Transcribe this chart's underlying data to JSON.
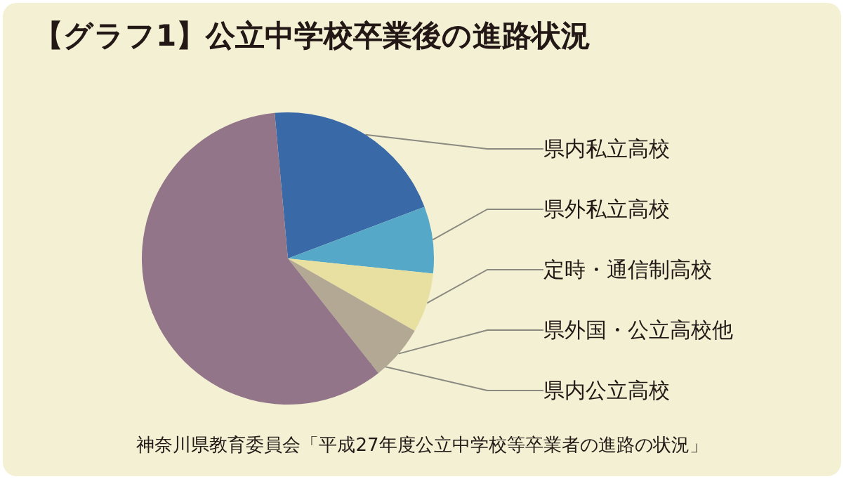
{
  "chart_data": {
    "type": "pie",
    "title": "【グラフ1】公立中学校卒業後の進路状況",
    "categories": [
      "県内私立高校",
      "県外私立高校",
      "定時・通信制高校",
      "県外国・公立高校他",
      "県内公立高校"
    ],
    "values": [
      20.7,
      7.4,
      6.6,
      6.1,
      59.2
    ],
    "colors": [
      "#3a69a8",
      "#56a8c8",
      "#e8e0a0",
      "#b2a894",
      "#927588"
    ],
    "annotations": [
      "神奈川県教育委員会「平成27年度公立中学校等卒業者の進路の状況」"
    ],
    "legend": false
  }
}
